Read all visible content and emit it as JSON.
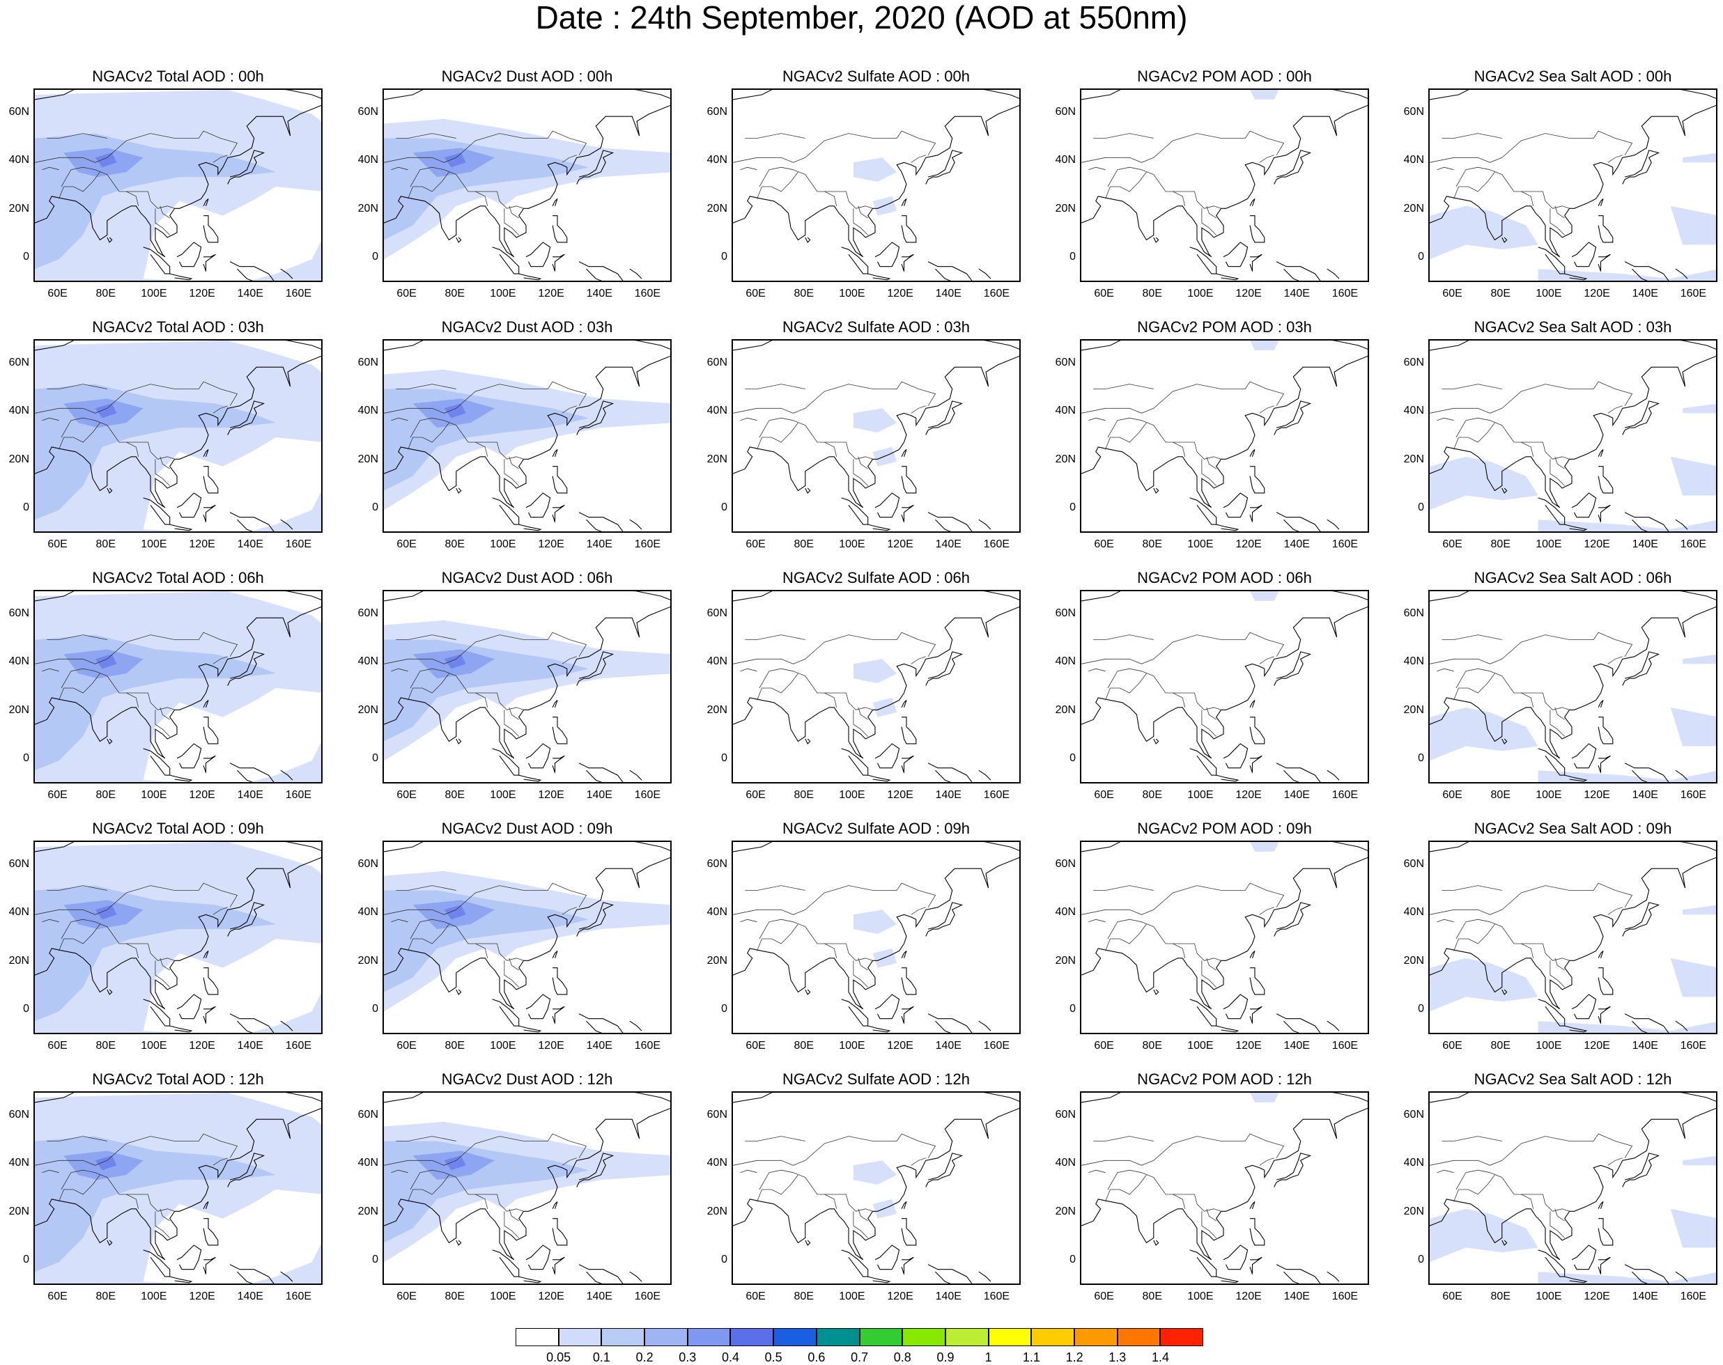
{
  "title": "Date : 24th September, 2020 (AOD at 550nm)",
  "panels": [
    [
      "NGACv2 Total AOD : 00h",
      "NGACv2 Dust AOD : 00h",
      "NGACv2 Sulfate AOD : 00h",
      "NGACv2 POM AOD : 00h",
      "NGACv2 Sea Salt AOD : 00h"
    ],
    [
      "NGACv2 Total AOD : 03h",
      "NGACv2 Dust AOD : 03h",
      "NGACv2 Sulfate AOD : 03h",
      "NGACv2 POM AOD : 03h",
      "NGACv2 Sea Salt AOD : 03h"
    ],
    [
      "NGACv2 Total AOD : 06h",
      "NGACv2 Dust AOD : 06h",
      "NGACv2 Sulfate AOD : 06h",
      "NGACv2 POM AOD : 06h",
      "NGACv2 Sea Salt AOD : 06h"
    ],
    [
      "NGACv2 Total AOD : 09h",
      "NGACv2 Dust AOD : 09h",
      "NGACv2 Sulfate AOD : 09h",
      "NGACv2 POM AOD : 09h",
      "NGACv2 Sea Salt  AOD : 09h"
    ],
    [
      "NGACv2 Total AOD  : 12h",
      "NGACv2 Dust AOD : 12h",
      "NGACv2 Sulfate AOD : 12h",
      "NGACv2 POM  AOD : 12h",
      "NGACv2 Sea Salt  AOD : 12h"
    ]
  ],
  "lat_ticks": [
    "60N",
    "40N",
    "20N",
    "0"
  ],
  "lon_ticks": [
    "60E",
    "80E",
    "100E",
    "120E",
    "140E",
    "160E"
  ],
  "colorbar": {
    "colors": [
      "#ffffff",
      "#d0dcfa",
      "#b8ccf6",
      "#9fb5f3",
      "#8098f0",
      "#5a6fe8",
      "#1a5fe0",
      "#009090",
      "#33cc33",
      "#88e800",
      "#bbee33",
      "#ffff00",
      "#ffcc00",
      "#ff9900",
      "#ff7700",
      "#ff2200"
    ],
    "labels": [
      "0.05",
      "0.1",
      "0.2",
      "0.3",
      "0.4",
      "0.5",
      "0.6",
      "0.7",
      "0.8",
      "0.9",
      "1",
      "1.1",
      "1.2",
      "1.3",
      "1.4"
    ]
  },
  "chart_data": {
    "type": "heatmap",
    "variable": "AOD at 550nm",
    "region": {
      "lon_range": [
        50,
        170
      ],
      "lat_range": [
        -10,
        70
      ]
    },
    "species_columns": [
      "Total",
      "Dust",
      "Sulfate",
      "POM",
      "Sea Salt"
    ],
    "forecast_hours_rows": [
      "00h",
      "03h",
      "06h",
      "09h",
      "12h"
    ],
    "levels": [
      0.05,
      0.1,
      0.2,
      0.3,
      0.4,
      0.5,
      0.6,
      0.7,
      0.8,
      0.9,
      1,
      1.1,
      1.2,
      1.3,
      1.4
    ]
  }
}
